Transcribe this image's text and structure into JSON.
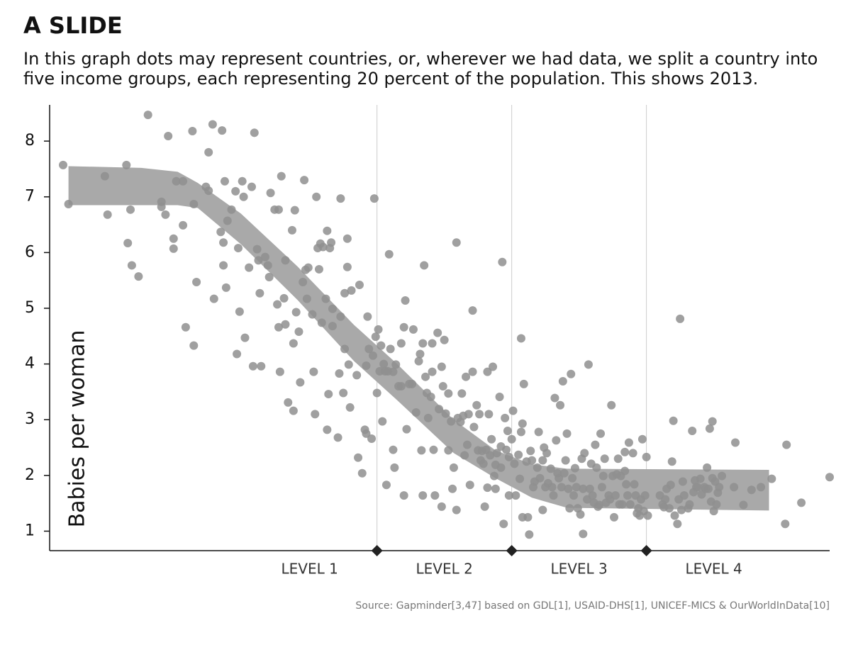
{
  "chart_data": {
    "type": "scatter",
    "title": "A SLIDE",
    "subtitle": [
      "In this graph dots may represent countries, or, wherever we had data, we split a country into",
      "five income groups, each representing 20 percent of the population. This shows 2013."
    ],
    "y_label": "Babies per woman",
    "source": "Source: Gapminder[3,47] based on GDL[1], USAID-DHS[1], UNICEF-MICS & OurWorldInData[10]",
    "xlim": [
      -0.43,
      5.36
    ],
    "ylim": [
      0.65,
      8.65
    ],
    "yticks": [
      1,
      2,
      3,
      4,
      5,
      6,
      7,
      8
    ],
    "levels": [
      {
        "label": "LEVEL 1",
        "start": 1,
        "end": 2
      },
      {
        "label": "LEVEL 2",
        "start": 2,
        "end": 3
      },
      {
        "label": "LEVEL 3",
        "start": 3,
        "end": 4
      },
      {
        "label": "LEVEL 4",
        "start": 4,
        "end": 5
      }
    ],
    "band": {
      "color": "#a9a9a9",
      "x": [
        -0.29,
        0.25,
        0.52,
        0.67,
        0.99,
        1.41,
        1.83,
        2.15,
        2.57,
        2.88,
        3.15,
        3.41,
        4.91
      ],
      "upper": [
        7.55,
        7.52,
        7.45,
        7.25,
        6.7,
        5.75,
        4.7,
        4.0,
        3.0,
        2.45,
        2.2,
        2.12,
        2.1
      ],
      "lower": [
        6.85,
        6.85,
        6.85,
        6.8,
        6.15,
        5.15,
        4.05,
        3.35,
        2.4,
        1.95,
        1.6,
        1.42,
        1.37
      ]
    },
    "color": "#8f8f8f",
    "x": [
      -0.33,
      -0.29,
      -0.02,
      0,
      0.14,
      0.17,
      0.15,
      0.18,
      0.23,
      0.3,
      0.45,
      0.4,
      0.4,
      0.43,
      0.51,
      0.49,
      0.49,
      0.56,
      0.56,
      0.58,
      0.63,
      0.64,
      0.64,
      0.66,
      0.73,
      0.75,
      0.75,
      0.78,
      0.85,
      0.79,
      0.84,
      0.86,
      0.86,
      0.88,
      0.87,
      0.89,
      0.92,
      0.95,
      0.97,
      0.98,
      0.96,
      1,
      1.01,
      1.02,
      1.05,
      1.07,
      1.08,
      1.09,
      1.11,
      1.12,
      1.13,
      1.14,
      1.17,
      1.19,
      1.2,
      1.21,
      1.24,
      1.26,
      1.27,
      1.27,
      1.29,
      1.31,
      1.28,
      1.32,
      1.32,
      1.34,
      1.37,
      1.38,
      1.38,
      1.39,
      1.4,
      1.42,
      1.43,
      1.45,
      1.46,
      1.47,
      1.48,
      1.49,
      1.52,
      1.53,
      1.54,
      1.55,
      1.56,
      1.57,
      1.58,
      1.59,
      1.6,
      1.62,
      1.63,
      1.63,
      1.65,
      1.64,
      1.66,
      1.67,
      1.67,
      1.71,
      1.72,
      1.73,
      1.73,
      1.75,
      1.76,
      1.76,
      1.78,
      1.78,
      1.79,
      1.8,
      1.81,
      1.85,
      1.86,
      1.87,
      1.89,
      1.91,
      1.92,
      1.93,
      1.92,
      1.94,
      1.96,
      1.97,
      1.98,
      1.99,
      2,
      2.01,
      2.02,
      2.03,
      2.04,
      2.05,
      2.06,
      2.08,
      2.07,
      2.09,
      2.1,
      2.12,
      2.12,
      2.13,
      2.14,
      2.16,
      2.18,
      2.18,
      2.2,
      2.2,
      2.21,
      2.22,
      2.24,
      2.26,
      2.27,
      2.29,
      2.31,
      2.32,
      2.33,
      2.34,
      2.34,
      2.35,
      2.36,
      2.37,
      2.38,
      2.4,
      2.41,
      2.41,
      2.42,
      2.43,
      2.45,
      2.46,
      2.48,
      2.48,
      2.49,
      2.5,
      2.51,
      2.53,
      2.53,
      2.55,
      2.56,
      2.57,
      2.59,
      2.59,
      2.6,
      2.62,
      2.63,
      2.64,
      2.65,
      2.66,
      2.67,
      2.68,
      2.69,
      2.71,
      2.71,
      2.72,
      2.74,
      2.75,
      2.76,
      2.77,
      2.78,
      2.79,
      2.8,
      2.81,
      2.82,
      2.82,
      2.83,
      2.84,
      2.85,
      2.86,
      2.87,
      2.88,
      2.88,
      2.89,
      2.91,
      2.92,
      2.92,
      2.93,
      2.94,
      2.95,
      2.96,
      2.97,
      2.98,
      2.98,
      3,
      3.01,
      3.02,
      3.03,
      3.05,
      3.06,
      3.07,
      3.07,
      3.08,
      3.08,
      3.09,
      3.11,
      3.12,
      3.13,
      3.14,
      3.15,
      3.16,
      3.17,
      3.19,
      3.2,
      3.21,
      3.23,
      3.23,
      3.24,
      3.25,
      3.26,
      3.27,
      3.29,
      3.3,
      3.31,
      3.32,
      3.33,
      3.34,
      3.35,
      3.36,
      3.37,
      3.38,
      3.39,
      3.4,
      3.41,
      3.42,
      3.43,
      3.44,
      3.45,
      3.46,
      3.47,
      3.48,
      3.49,
      3.51,
      3.52,
      3.53,
      3.53,
      3.54,
      3.56,
      3.57,
      3.58,
      3.59,
      3.6,
      3.61,
      3.62,
      3.63,
      3.64,
      3.65,
      3.66,
      3.67,
      3.68,
      3.69,
      3.7,
      3.72,
      3.73,
      3.74,
      3.75,
      3.76,
      3.77,
      3.78,
      3.79,
      3.8,
      3.81,
      3.82,
      3.84,
      3.84,
      3.85,
      3.86,
      3.87,
      3.88,
      3.9,
      3.91,
      3.92,
      3.93,
      3.94,
      3.95,
      3.96,
      3.97,
      3.98,
      3.99,
      4,
      4.01,
      4.1,
      4.12,
      4.13,
      4.14,
      4.15,
      4.17,
      4.18,
      4.19,
      4.2,
      4.21,
      4.23,
      4.24,
      4.25,
      4.26,
      4.27,
      4.28,
      4.31,
      4.32,
      4.34,
      4.35,
      4.36,
      4.37,
      4.38,
      4.4,
      4.41,
      4.43,
      4.44,
      4.45,
      4.46,
      4.47,
      4.48,
      4.49,
      4.49,
      4.5,
      4.51,
      4.52,
      4.53,
      4.54,
      4.56,
      4.66,
      4.65,
      4.72,
      4.78,
      4.85,
      4.93,
      5.03,
      5.04,
      5.15,
      5.36
    ],
    "values": [
      7.57,
      6.87,
      7.37,
      6.68,
      7.57,
      6.77,
      6.17,
      5.77,
      5.57,
      8.47,
      8.09,
      6.91,
      6.82,
      6.68,
      7.28,
      6.25,
      6.07,
      7.28,
      6.49,
      4.66,
      8.18,
      6.87,
      4.33,
      5.47,
      7.18,
      7.11,
      7.8,
      8.3,
      8.19,
      5.17,
      6.37,
      6.18,
      5.77,
      5.37,
      7.28,
      6.57,
      6.77,
      7.1,
      6.08,
      4.94,
      4.18,
      7.28,
      7,
      4.47,
      5.73,
      7.18,
      3.96,
      8.15,
      6.06,
      5.86,
      5.27,
      3.96,
      5.92,
      5.77,
      5.56,
      7.07,
      6.77,
      5.07,
      4.66,
      6.77,
      7.37,
      5.18,
      3.86,
      5.86,
      4.71,
      3.31,
      6.4,
      4.37,
      3.16,
      6.76,
      4.93,
      4.58,
      3.67,
      5.47,
      7.3,
      5.69,
      5.17,
      5.73,
      4.89,
      3.86,
      3.1,
      7,
      6.08,
      5.7,
      6.16,
      4.74,
      6.1,
      5.17,
      2.82,
      6.39,
      6.08,
      3.46,
      6.18,
      4.68,
      4.99,
      2.68,
      3.83,
      6.97,
      4.85,
      3.48,
      5.27,
      4.27,
      6.25,
      5.74,
      3.99,
      3.22,
      5.32,
      3.8,
      2.32,
      5.42,
      2.04,
      2.82,
      3.97,
      4.85,
      2.75,
      4.27,
      2.66,
      4.15,
      6.97,
      4.49,
      3.48,
      4.62,
      3.87,
      4.33,
      2.97,
      4,
      3.87,
      3.87,
      1.83,
      5.97,
      4.27,
      3.86,
      2.46,
      2.14,
      3.99,
      3.6,
      3.6,
      4.37,
      4.66,
      1.64,
      5.14,
      2.83,
      3.64,
      3.64,
      4.62,
      3.13,
      4.05,
      4.18,
      2.45,
      1.64,
      4.37,
      5.77,
      3.77,
      3.48,
      3.03,
      3.41,
      3.86,
      4.37,
      2.46,
      1.64,
      4.56,
      3.19,
      3.95,
      1.44,
      3.6,
      4.43,
      3.11,
      3.47,
      2.45,
      2.97,
      1.76,
      2.14,
      6.18,
      1.38,
      3.03,
      2.96,
      3.47,
      3.07,
      2.36,
      3.77,
      2.55,
      3.1,
      1.83,
      3.86,
      4.96,
      2.87,
      3.26,
      2.45,
      3.1,
      2.27,
      2.44,
      2.21,
      1.44,
      2.46,
      1.78,
      3.86,
      3.1,
      2.36,
      2.65,
      3.95,
      1.99,
      2.19,
      1.76,
      2.4,
      3.41,
      2.52,
      2.14,
      5.83,
      1.13,
      3.03,
      2.46,
      2.8,
      1.64,
      2.33,
      2.65,
      3.16,
      2.21,
      1.64,
      2.37,
      1.94,
      4.46,
      2.78,
      2.93,
      1.25,
      3.64,
      2.25,
      1.25,
      0.94,
      2.44,
      2.27,
      1.79,
      1.89,
      2.14,
      2.78,
      1.95,
      1.38,
      2.27,
      2.5,
      1.79,
      2.4,
      1.86,
      2.12,
      1.79,
      1.64,
      3.39,
      2.63,
      2.04,
      1.95,
      3.26,
      1.79,
      3.69,
      2.04,
      2.27,
      2.75,
      1.76,
      1.41,
      3.82,
      1.95,
      1.64,
      2.13,
      1.79,
      1.41,
      1.3,
      2.3,
      1.76,
      0.95,
      2.4,
      1.57,
      3.99,
      1.76,
      2.21,
      1.64,
      1.51,
      2.55,
      2.14,
      1.44,
      1.47,
      2.75,
      1.79,
      1.99,
      2.3,
      1.51,
      1.64,
      1.57,
      3.26,
      1.99,
      1.25,
      1.64,
      2.02,
      2.3,
      1.48,
      1.99,
      1.48,
      2.08,
      2.42,
      1.84,
      1.64,
      2.59,
      1.48,
      2.4,
      1.84,
      1.64,
      1.32,
      1.41,
      1.28,
      1.57,
      2.65,
      1.36,
      1.64,
      2.33,
      1.28,
      1.64,
      1.48,
      1.43,
      1.57,
      1.76,
      1.41,
      1.83,
      2.25,
      2.98,
      1.28,
      1.13,
      1.57,
      4.81,
      1.38,
      1.89,
      1.64,
      1.41,
      1.48,
      2.8,
      1.7,
      1.91,
      1.79,
      1.79,
      1.94,
      1.66,
      1.79,
      1.76,
      2.14,
      1.76,
      2.84,
      1.53,
      2.97,
      1.95,
      1.36,
      1.89,
      1.48,
      1.69,
      1.79,
      1.99,
      2.59,
      1.79,
      1.47,
      1.74,
      1.79,
      1.94,
      1.13,
      2.55,
      1.51,
      1.97
    ]
  }
}
